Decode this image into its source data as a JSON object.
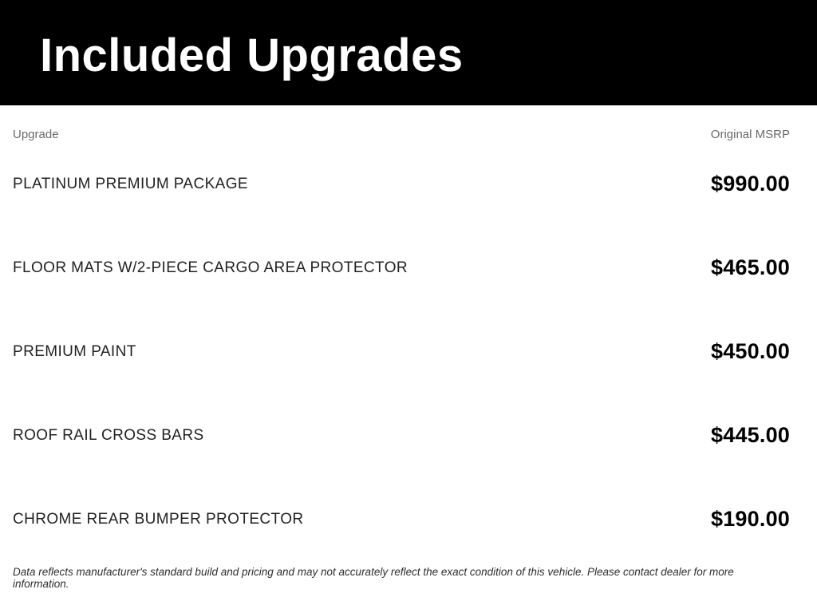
{
  "header": {
    "title": "Included Upgrades",
    "bg_color": "#000000",
    "text_color": "#ffffff"
  },
  "table": {
    "columns": {
      "upgrade": "Upgrade",
      "msrp": "Original MSRP"
    },
    "rows": [
      {
        "name": "PLATINUM PREMIUM PACKAGE",
        "price": "$990.00"
      },
      {
        "name": "FLOOR MATS W/2-PIECE CARGO AREA PROTECTOR",
        "price": "$465.00"
      },
      {
        "name": "PREMIUM PAINT",
        "price": "$450.00"
      },
      {
        "name": "ROOF RAIL CROSS BARS",
        "price": "$445.00"
      },
      {
        "name": "CHROME REAR BUMPER PROTECTOR",
        "price": "$190.00"
      }
    ]
  },
  "disclaimer": "Data reflects manufacturer's standard build and pricing and may not accurately reflect the exact condition of this vehicle. Please contact dealer for more information."
}
